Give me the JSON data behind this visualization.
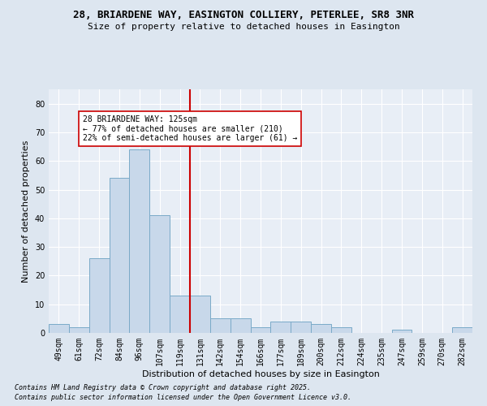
{
  "title_line1": "28, BRIARDENE WAY, EASINGTON COLLIERY, PETERLEE, SR8 3NR",
  "title_line2": "Size of property relative to detached houses in Easington",
  "xlabel": "Distribution of detached houses by size in Easington",
  "ylabel": "Number of detached properties",
  "footnote1": "Contains HM Land Registry data © Crown copyright and database right 2025.",
  "footnote2": "Contains public sector information licensed under the Open Government Licence v3.0.",
  "annotation_line1": "28 BRIARDENE WAY: 125sqm",
  "annotation_line2": "← 77% of detached houses are smaller (210)",
  "annotation_line3": "22% of semi-detached houses are larger (61) →",
  "bar_categories": [
    "49sqm",
    "61sqm",
    "72sqm",
    "84sqm",
    "96sqm",
    "107sqm",
    "119sqm",
    "131sqm",
    "142sqm",
    "154sqm",
    "166sqm",
    "177sqm",
    "189sqm",
    "200sqm",
    "212sqm",
    "224sqm",
    "235sqm",
    "247sqm",
    "259sqm",
    "270sqm",
    "282sqm"
  ],
  "bar_values": [
    3,
    2,
    26,
    54,
    64,
    41,
    13,
    13,
    5,
    5,
    2,
    4,
    4,
    3,
    2,
    0,
    0,
    1,
    0,
    0,
    2
  ],
  "bar_color": "#c8d8ea",
  "bar_edge_color": "#7aaac8",
  "vline_color": "#cc0000",
  "bg_color": "#dde6f0",
  "plot_bg_color": "#e8eef6",
  "grid_color": "#ffffff",
  "ylim": [
    0,
    85
  ],
  "yticks": [
    0,
    10,
    20,
    30,
    40,
    50,
    60,
    70,
    80
  ],
  "annotation_box_facecolor": "#ffffff",
  "annotation_box_edgecolor": "#cc0000",
  "title_fontsize": 9,
  "subtitle_fontsize": 8,
  "axis_label_fontsize": 8,
  "tick_fontsize": 7,
  "annotation_fontsize": 7,
  "footnote_fontsize": 6
}
